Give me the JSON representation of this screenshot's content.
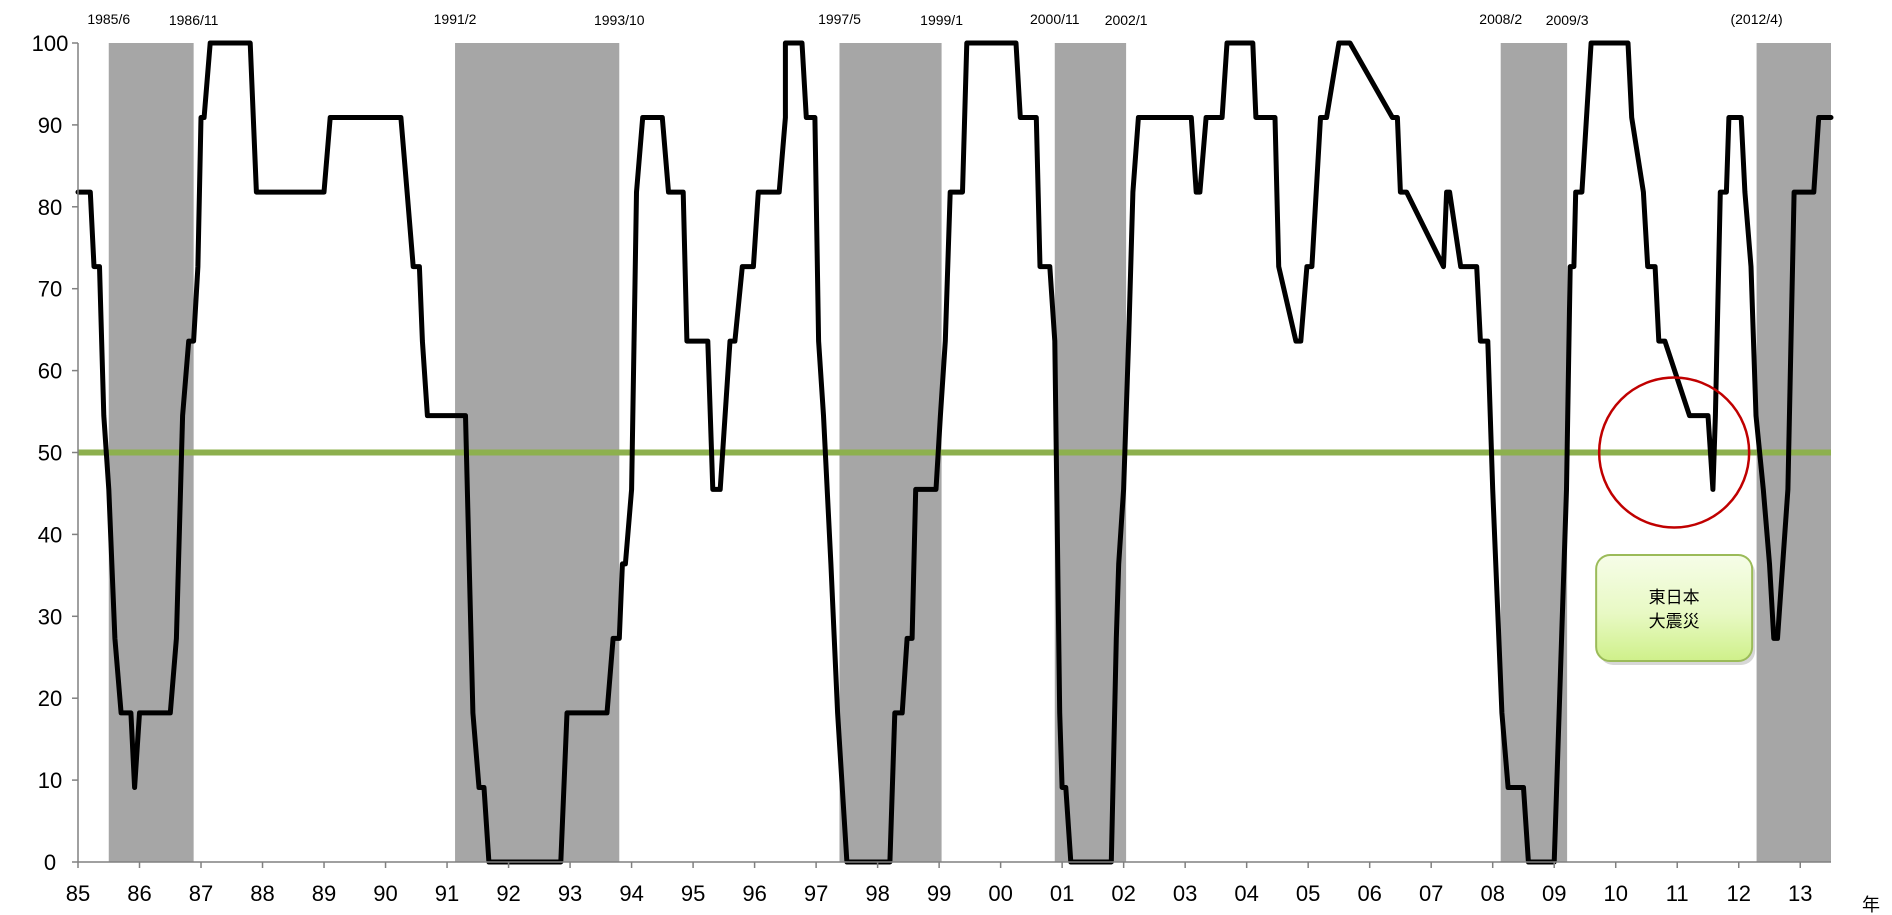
{
  "chart_data": {
    "type": "line",
    "title": "",
    "xlabel": "年",
    "ylabel": "",
    "ylim": [
      0,
      100
    ],
    "xlim": [
      1985.0,
      2013.5
    ],
    "grid": false,
    "y_ticks": [
      "0",
      "10",
      "20",
      "30",
      "40",
      "50",
      "60",
      "70",
      "80",
      "90",
      "100"
    ],
    "x_ticks": [
      {
        "year": 1985,
        "label": "85"
      },
      {
        "year": 1986,
        "label": "86"
      },
      {
        "year": 1987,
        "label": "87"
      },
      {
        "year": 1988,
        "label": "88"
      },
      {
        "year": 1989,
        "label": "89"
      },
      {
        "year": 1990,
        "label": "90"
      },
      {
        "year": 1991,
        "label": "91"
      },
      {
        "year": 1992,
        "label": "92"
      },
      {
        "year": 1993,
        "label": "93"
      },
      {
        "year": 1994,
        "label": "94"
      },
      {
        "year": 1995,
        "label": "95"
      },
      {
        "year": 1996,
        "label": "96"
      },
      {
        "year": 1997,
        "label": "97"
      },
      {
        "year": 1998,
        "label": "98"
      },
      {
        "year": 1999,
        "label": "99"
      },
      {
        "year": 2000,
        "label": "00"
      },
      {
        "year": 2001,
        "label": "01"
      },
      {
        "year": 2002,
        "label": "02"
      },
      {
        "year": 2003,
        "label": "03"
      },
      {
        "year": 2004,
        "label": "04"
      },
      {
        "year": 2005,
        "label": "05"
      },
      {
        "year": 2006,
        "label": "06"
      },
      {
        "year": 2007,
        "label": "07"
      },
      {
        "year": 2008,
        "label": "08"
      },
      {
        "year": 2009,
        "label": "09"
      },
      {
        "year": 2010,
        "label": "10"
      },
      {
        "year": 2011,
        "label": "11"
      },
      {
        "year": 2012,
        "label": "12"
      },
      {
        "year": 2013,
        "label": "13"
      }
    ],
    "recession_periods": [
      {
        "start": 1985.5,
        "end": 1986.88
      },
      {
        "start": 1991.13,
        "end": 1993.8
      },
      {
        "start": 1997.38,
        "end": 1999.04
      },
      {
        "start": 2000.88,
        "end": 2002.04
      },
      {
        "start": 2008.13,
        "end": 2009.21
      },
      {
        "start": 2012.29,
        "end": 2013.5
      }
    ],
    "turning_point_labels": [
      {
        "year": 1985.5,
        "text": "1985/6"
      },
      {
        "year": 1986.88,
        "text": "1986/11"
      },
      {
        "year": 1991.13,
        "text": "1991/2"
      },
      {
        "year": 1993.8,
        "text": "1993/10"
      },
      {
        "year": 1997.38,
        "text": "1997/5"
      },
      {
        "year": 1999.04,
        "text": "1999/1"
      },
      {
        "year": 2000.88,
        "text": "2000/11"
      },
      {
        "year": 2002.04,
        "text": "2002/1"
      },
      {
        "year": 2008.13,
        "text": "2008/2"
      },
      {
        "year": 2009.21,
        "text": "2009/3"
      },
      {
        "year": 2012.29,
        "text": "(2012/4)"
      }
    ],
    "reference_line": {
      "y": 50,
      "color": "#8db04e"
    },
    "series": [
      {
        "color": "#000000",
        "x": [
          1985.0,
          1985.2,
          1985.26,
          1985.35,
          1985.42,
          1985.5,
          1985.6,
          1985.7,
          1985.86,
          1985.92,
          1986.0,
          1986.5,
          1986.6,
          1986.7,
          1986.8,
          1986.88,
          1986.95,
          1987.0,
          1987.05,
          1987.15,
          1987.2,
          1987.8,
          1987.9,
          1989.0,
          1989.1,
          1990.25,
          1990.35,
          1990.45,
          1990.55,
          1990.6,
          1990.68,
          1991.3,
          1991.42,
          1991.52,
          1991.6,
          1991.68,
          1992.85,
          1992.95,
          1993.6,
          1993.7,
          1993.8,
          1993.85,
          1993.9,
          1994.0,
          1994.08,
          1994.18,
          1994.5,
          1994.6,
          1994.84,
          1994.9,
          1995.24,
          1995.32,
          1995.44,
          1995.6,
          1995.68,
          1995.8,
          1995.98,
          1996.06,
          1996.1,
          1996.4,
          1996.5,
          1996.5,
          1996.77,
          1996.84,
          1996.98,
          1997.04,
          1997.12,
          1997.24,
          1997.35,
          1997.5,
          1997.66,
          1998.2,
          1998.28,
          1998.4,
          1998.48,
          1998.56,
          1998.62,
          1998.7,
          1998.95,
          1999.02,
          1999.1,
          1999.18,
          1999.38,
          1999.45,
          1999.5,
          2000.25,
          2000.32,
          2000.58,
          2000.64,
          2000.8,
          2000.88,
          2000.96,
          2001.0,
          2001.06,
          2001.14,
          2001.2,
          2001.8,
          2001.88,
          2001.92,
          2002.0,
          2002.08,
          2002.15,
          2002.24,
          2002.3,
          2003.1,
          2003.18,
          2003.24,
          2003.34,
          2003.38,
          2003.6,
          2003.68,
          2004.1,
          2004.15,
          2004.46,
          2004.52,
          2004.8,
          2004.88,
          2004.98,
          2005.06,
          2005.2,
          2005.3,
          2005.5,
          2005.6,
          2005.68,
          2006.37,
          2006.45,
          2006.5,
          2006.6,
          2007.2,
          2007.25,
          2007.3,
          2007.48,
          2007.52,
          2007.74,
          2007.8,
          2007.92,
          2008.0,
          2008.15,
          2008.25,
          2008.32,
          2008.5,
          2008.58,
          2008.93,
          2009.0,
          2009.2,
          2009.26,
          2009.32,
          2009.35,
          2009.45,
          2009.6,
          2009.68,
          2010.2,
          2010.26,
          2010.45,
          2010.52,
          2010.64,
          2010.7,
          2010.8,
          2011.2,
          2011.32,
          2011.38,
          2011.5,
          2011.58,
          2011.62,
          2011.7,
          2011.8,
          2011.84,
          2011.93,
          2012.04,
          2012.1,
          2012.2,
          2012.28,
          2012.4,
          2012.5,
          2012.57,
          2012.63,
          2012.8,
          2012.9,
          2013.0,
          2013.04,
          2013.22,
          2013.3,
          2013.46,
          2013.5
        ],
        "y": [
          81.8,
          81.8,
          72.7,
          72.7,
          54.5,
          45.5,
          27.3,
          18.2,
          18.2,
          9.1,
          18.2,
          18.2,
          27.3,
          54.5,
          63.6,
          63.6,
          72.7,
          90.9,
          90.9,
          100,
          100,
          100,
          81.8,
          81.8,
          90.9,
          90.9,
          81.8,
          72.7,
          72.7,
          63.6,
          54.5,
          54.5,
          18.2,
          9.1,
          9.1,
          0,
          0,
          18.2,
          18.2,
          27.3,
          27.3,
          36.4,
          36.4,
          45.5,
          81.8,
          90.9,
          90.9,
          81.8,
          81.8,
          63.6,
          63.6,
          45.5,
          45.5,
          63.6,
          63.6,
          72.7,
          72.7,
          81.8,
          81.8,
          81.8,
          90.9,
          100,
          100,
          90.9,
          90.9,
          63.6,
          54.5,
          36.4,
          18.2,
          0,
          0,
          0,
          18.2,
          18.2,
          27.3,
          27.3,
          45.5,
          45.5,
          45.5,
          54.5,
          63.6,
          81.8,
          81.8,
          100,
          100,
          100,
          90.9,
          90.9,
          72.7,
          72.7,
          63.6,
          18.2,
          9.1,
          9.1,
          0,
          0,
          0,
          27.3,
          36.4,
          45.5,
          63.6,
          81.8,
          90.9,
          90.9,
          90.9,
          81.8,
          81.8,
          90.9,
          90.9,
          90.9,
          100,
          100,
          90.9,
          90.9,
          72.7,
          63.6,
          63.6,
          72.7,
          72.7,
          90.9,
          90.9,
          100,
          100,
          100,
          90.9,
          90.9,
          81.8,
          81.8,
          72.7,
          81.8,
          81.8,
          72.7,
          72.7,
          72.7,
          63.6,
          63.6,
          45.5,
          18.2,
          9.1,
          9.1,
          9.1,
          0,
          0,
          0,
          45.5,
          72.7,
          72.7,
          81.8,
          81.8,
          100,
          100,
          100,
          90.9,
          81.8,
          72.7,
          72.7,
          63.6,
          63.6,
          54.5,
          54.5,
          54.5,
          54.5,
          45.5,
          54.5,
          81.8,
          81.8,
          90.9,
          90.9,
          90.9,
          81.8,
          72.7,
          54.5,
          45.5,
          36.4,
          27.3,
          27.3,
          45.5,
          81.8,
          81.8,
          81.8,
          81.8,
          90.9,
          90.9,
          90.9
        ]
      }
    ],
    "annotations": [
      {
        "type": "circle",
        "cx": 2010.95,
        "cy": 50,
        "color": "#c00000"
      },
      {
        "type": "callout",
        "text_lines": [
          "東日本",
          "大震災"
        ]
      }
    ]
  }
}
